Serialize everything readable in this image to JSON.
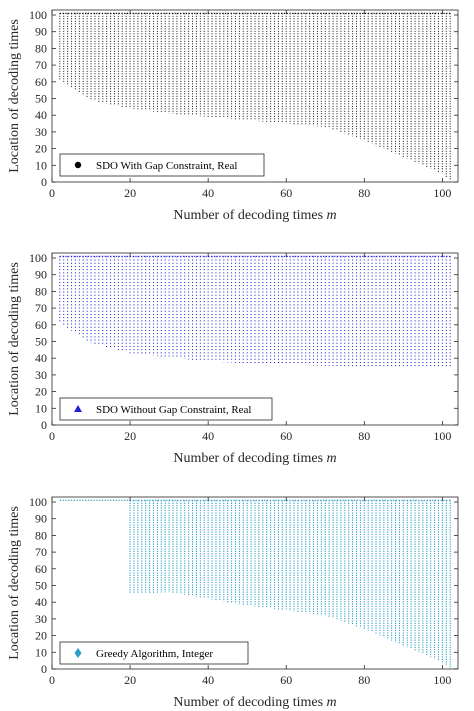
{
  "xlabel": "Number of decoding times",
  "xlabel_var": "m",
  "ylabel": "Location of decoding times",
  "chart_data": [
    {
      "type": "scatter",
      "legend": "SDO With Gap Constraint, Real",
      "color": "#000000",
      "marker": "circle",
      "xlim": [
        0,
        104
      ],
      "ylim": [
        0,
        103
      ],
      "xticks": [
        0,
        20,
        40,
        60,
        80,
        100
      ],
      "yticks": [
        0,
        10,
        20,
        30,
        40,
        50,
        60,
        70,
        80,
        90,
        100
      ],
      "grid": false,
      "legend_position": "bottom-left",
      "series": [
        {
          "x": [
            2,
            20,
            40,
            60,
            70,
            80,
            90,
            100,
            102
          ],
          "y": [
            101,
            101,
            101,
            101,
            101,
            101,
            101,
            101,
            101
          ]
        },
        {
          "x": [
            2,
            10,
            20,
            30,
            40,
            50,
            60,
            70,
            80,
            90,
            100,
            102
          ],
          "y": [
            61,
            49,
            44,
            41,
            39,
            37,
            35,
            33,
            25,
            15,
            5,
            1
          ]
        }
      ]
    },
    {
      "type": "scatter",
      "legend": "SDO Without Gap Constraint, Real",
      "color": "#1f1fd6",
      "marker": "triangle",
      "xlim": [
        0,
        104
      ],
      "ylim": [
        0,
        103
      ],
      "xticks": [
        0,
        20,
        40,
        60,
        80,
        100
      ],
      "yticks": [
        0,
        10,
        20,
        30,
        40,
        50,
        60,
        70,
        80,
        90,
        100
      ],
      "grid": false,
      "legend_position": "bottom-left",
      "series": [
        {
          "x": [
            2,
            20,
            40,
            60,
            80,
            100,
            102
          ],
          "y": [
            101,
            101,
            101,
            101,
            101,
            101,
            101
          ]
        },
        {
          "x": [
            2,
            10,
            20,
            40,
            60,
            80,
            100,
            102
          ],
          "y": [
            61,
            49,
            43,
            38,
            36,
            35,
            34,
            34
          ]
        }
      ]
    },
    {
      "type": "scatter",
      "legend": "Greedy Algorithm, Integer",
      "color": "#2a9fc4",
      "marker": "diamond",
      "xlim": [
        0,
        104
      ],
      "ylim": [
        0,
        103
      ],
      "xticks": [
        0,
        20,
        40,
        60,
        80,
        100
      ],
      "yticks": [
        0,
        10,
        20,
        30,
        40,
        50,
        60,
        70,
        80,
        90,
        100
      ],
      "grid": false,
      "legend_position": "bottom-left",
      "series": [
        {
          "x": [
            2,
            20,
            40,
            60,
            80,
            100,
            102
          ],
          "y": [
            101,
            101,
            101,
            101,
            101,
            101,
            101
          ]
        },
        {
          "x": [
            20,
            30,
            40,
            50,
            60,
            70,
            80,
            90,
            100,
            102
          ],
          "y": [
            45,
            46,
            42,
            38,
            35,
            32,
            24,
            14,
            4,
            1
          ]
        }
      ]
    }
  ]
}
